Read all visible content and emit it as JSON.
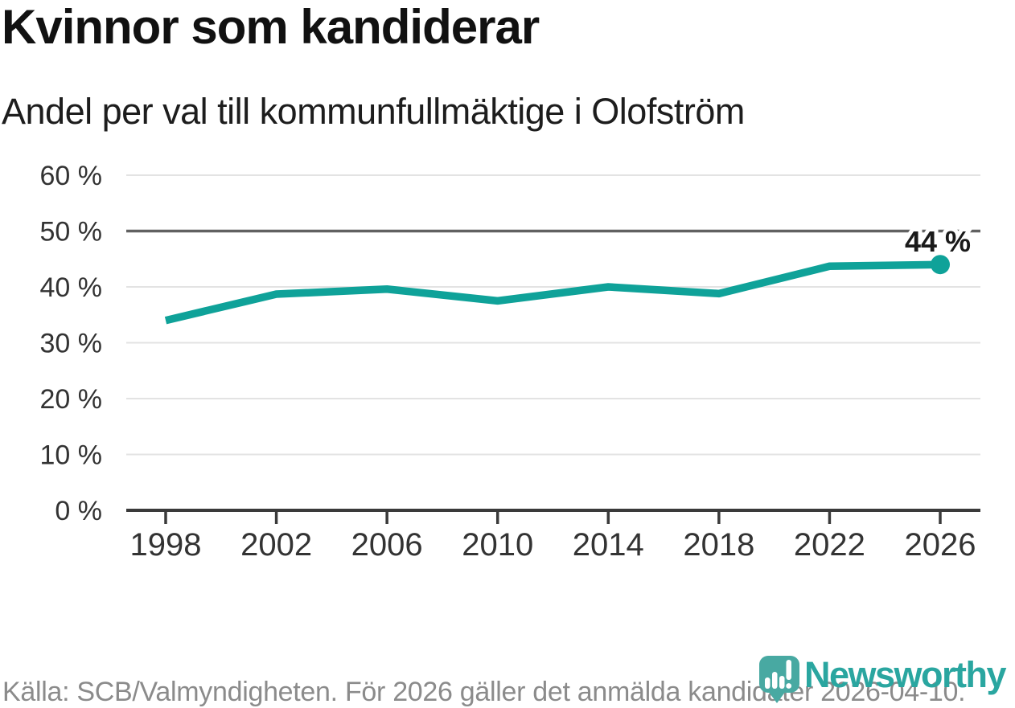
{
  "header": {
    "title": "Kvinnor som kandiderar",
    "subtitle": "Andel per val till kommunfullmäktige i Olofström"
  },
  "chart_data": {
    "type": "line",
    "categories": [
      "1998",
      "2002",
      "2006",
      "2010",
      "2014",
      "2018",
      "2022",
      "2026"
    ],
    "values": [
      34,
      38.7,
      39.6,
      37.5,
      40,
      38.8,
      43.7,
      44
    ],
    "title": "Kvinnor som kandiderar",
    "subtitle": "Andel per val till kommunfullmäktige i Olofström",
    "xlabel": "",
    "ylabel": "",
    "ylim": [
      0,
      60
    ],
    "yticks": [
      0,
      10,
      20,
      30,
      40,
      50,
      60
    ],
    "ytick_suffix": " %",
    "grid": true,
    "reference_line": 50,
    "end_label": "44 %",
    "legend": "none",
    "line_color": "#0fa299",
    "grid_color": "#e3e3e3",
    "reference_color": "#616161",
    "axis_color": "#3a3a3a",
    "tick_text_color": "#333333",
    "annotation_color": "#1a1a1a"
  },
  "footer": {
    "source": "Källa: SCB/Valmyndigheten. För 2026 gäller det anmälda kandidater 2026-04-10."
  },
  "branding": {
    "logo_text": "Newsworthy",
    "icon_color": "#48a9a2",
    "logo_text_color": "#2aa6a0"
  }
}
